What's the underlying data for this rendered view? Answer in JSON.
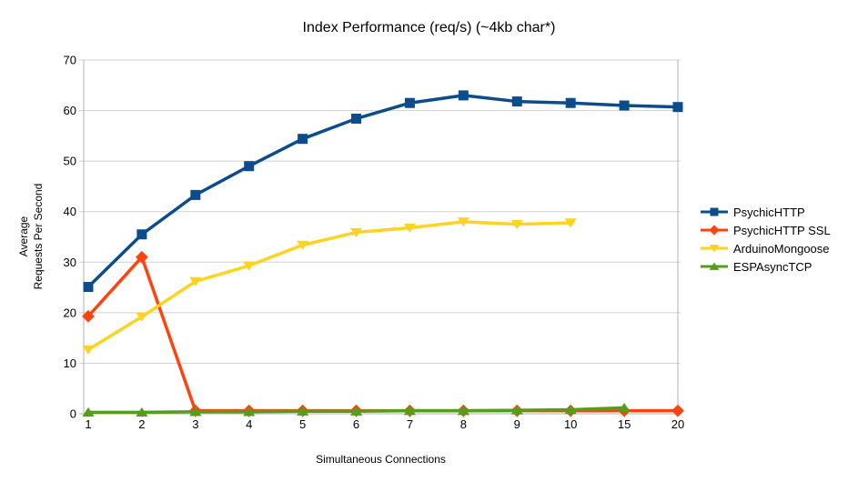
{
  "chart_data": {
    "type": "line",
    "title": "Index Performance (req/s) (~4kb char*)",
    "xlabel": "Simultaneous Connections",
    "ylabel_lines": [
      "Average",
      "Requests Per Second"
    ],
    "categories": [
      "1",
      "2",
      "3",
      "4",
      "5",
      "6",
      "7",
      "8",
      "9",
      "10",
      "15",
      "20"
    ],
    "y_ticks": [
      0,
      10,
      20,
      30,
      40,
      50,
      60,
      70
    ],
    "ylim": [
      0,
      70
    ],
    "grid": "horizontal-only",
    "legend_position": "right-middle",
    "series": [
      {
        "name": "PsychicHTTP",
        "marker": "square",
        "color": "#0d4c8c",
        "values": [
          25.1,
          35.5,
          43.3,
          49.0,
          54.4,
          58.4,
          61.5,
          63.0,
          61.8,
          61.5,
          61.0,
          60.7
        ]
      },
      {
        "name": "PsychicHTTP SSL",
        "marker": "diamond",
        "color": "#ff420e",
        "values": [
          19.3,
          31.0,
          0.6,
          0.6,
          0.6,
          0.6,
          0.6,
          0.6,
          0.6,
          0.6,
          0.6,
          0.6
        ]
      },
      {
        "name": "ArduinoMongoose",
        "marker": "triangle-down",
        "color": "#ffd320",
        "values": [
          12.7,
          19.2,
          26.2,
          29.3,
          33.4,
          35.9,
          36.8,
          38.0,
          37.5,
          37.8,
          null,
          null
        ]
      },
      {
        "name": "ESPAsyncTCP",
        "marker": "triangle-up",
        "color": "#579d1c",
        "values": [
          0.3,
          0.3,
          0.4,
          0.4,
          0.5,
          0.5,
          0.6,
          0.6,
          0.7,
          0.8,
          1.2,
          null
        ]
      }
    ]
  },
  "colors": {
    "axis": "#b3b3b3",
    "grid": "#d0d0d0",
    "text": "#000000",
    "background": "#ffffff"
  }
}
